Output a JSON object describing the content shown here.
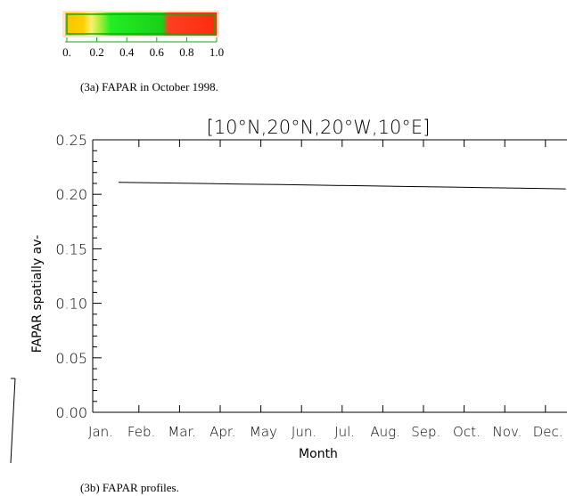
{
  "colorbar": {
    "ticks": [
      {
        "value": 0,
        "label": "0."
      },
      0.2,
      0.4,
      0.6,
      0.8,
      {
        "value": 1,
        "label": "1.0"
      }
    ]
  },
  "caption_a": "(3a) FAPAR in October 1998.",
  "caption_b": "(3b) FAPAR profiles.",
  "chart_data": {
    "type": "line",
    "title": "[10°N,20°N,20°W,10°E]",
    "x_label": "Month",
    "y_label": "FAPAR spatially av-",
    "categories": [
      "Jan.",
      "Feb.",
      "Mar.",
      "Apr.",
      "May",
      "Jun.",
      "Jul.",
      "Aug.",
      "Sep.",
      "Oct.",
      "Nov.",
      "Dec."
    ],
    "series": [
      {
        "name": "FAPAR",
        "color": "#000000",
        "values": [
          0.211,
          0.2105,
          0.21,
          0.2094,
          0.2089,
          0.2083,
          0.2078,
          0.2072,
          0.2067,
          0.2061,
          0.2056,
          0.205
        ]
      }
    ],
    "ylim": [
      0,
      0.25
    ],
    "yticks": [
      {
        "value": 0,
        "label": "0.00"
      },
      0.05,
      {
        "value": 0.1,
        "label": "0.10"
      },
      0.15,
      {
        "value": 0.2,
        "label": "0.20"
      },
      0.25
    ]
  }
}
